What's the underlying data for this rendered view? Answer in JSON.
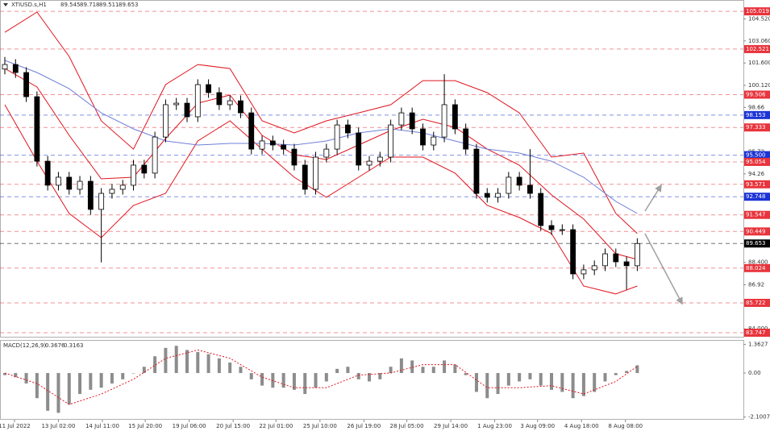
{
  "chart_data": [
    {
      "type": "candlestick",
      "title": "XTIUSD.s,H1",
      "ohlc_label": [
        89.545,
        89.718,
        89.511,
        89.653
      ],
      "open": [
        101.2,
        101.5,
        100.97,
        99.37,
        95.1,
        93.51,
        94.04,
        93.24,
        93.77,
        91.91,
        92.97,
        93.24,
        93.51,
        94.84,
        94.31,
        96.7,
        98.84,
        98.94,
        98.04,
        100.17,
        99.64,
        98.84,
        99.1,
        98.3,
        95.9,
        96.44,
        96.17,
        95.9,
        94.84,
        93.24,
        95.37,
        95.9,
        97.5,
        96.97,
        94.84,
        95.1,
        95.37,
        97.5,
        98.3,
        97.24,
        96.17,
        96.7,
        98.84,
        97.24,
        95.9,
        92.97,
        92.71,
        92.97,
        94.04,
        93.51,
        92.97,
        90.84,
        90.57,
        90.57,
        87.64,
        87.91,
        88.18,
        88.97,
        88.44,
        88.18
      ],
      "high": [
        102.0,
        101.85,
        101.32,
        99.72,
        95.45,
        94.39,
        94.39,
        94.12,
        94.12,
        93.32,
        93.59,
        93.86,
        95.19,
        95.19,
        97.05,
        99.19,
        99.29,
        99.29,
        100.52,
        100.52,
        99.99,
        99.45,
        99.45,
        98.65,
        96.79,
        96.79,
        96.52,
        96.25,
        95.19,
        95.72,
        96.25,
        97.85,
        97.85,
        97.32,
        95.45,
        95.72,
        97.85,
        98.65,
        98.65,
        97.59,
        97.05,
        100.86,
        99.19,
        97.59,
        96.25,
        93.32,
        93.32,
        94.39,
        94.39,
        95.9,
        93.32,
        91.19,
        90.92,
        90.92,
        88.26,
        88.53,
        89.32,
        89.32,
        88.79,
        90.0
      ],
      "low": [
        100.85,
        100.62,
        99.02,
        94.75,
        93.16,
        93.16,
        92.89,
        92.89,
        91.56,
        88.4,
        92.62,
        92.89,
        93.16,
        93.96,
        93.96,
        96.35,
        98.49,
        97.69,
        97.69,
        99.29,
        98.49,
        98.49,
        97.95,
        95.55,
        95.55,
        95.82,
        95.55,
        94.49,
        92.89,
        92.89,
        95.02,
        95.55,
        96.62,
        94.49,
        94.49,
        94.75,
        95.02,
        97.15,
        96.89,
        95.82,
        95.82,
        96.35,
        96.89,
        95.55,
        92.62,
        92.36,
        92.36,
        92.62,
        93.16,
        92.62,
        90.49,
        90.22,
        90.22,
        87.29,
        87.29,
        87.56,
        87.83,
        88.09,
        86.6,
        87.83
      ],
      "close": [
        101.5,
        100.97,
        99.37,
        95.1,
        93.51,
        94.04,
        93.24,
        93.77,
        91.91,
        92.97,
        93.24,
        93.51,
        94.84,
        94.31,
        96.7,
        98.84,
        98.94,
        98.04,
        100.17,
        99.64,
        98.84,
        99.1,
        98.3,
        95.9,
        96.44,
        96.17,
        95.9,
        94.84,
        93.24,
        95.37,
        95.9,
        97.5,
        96.97,
        94.84,
        95.1,
        95.37,
        97.5,
        98.3,
        97.24,
        96.17,
        96.7,
        98.84,
        97.24,
        95.9,
        92.97,
        92.71,
        92.97,
        94.04,
        93.51,
        92.97,
        90.84,
        90.57,
        90.57,
        87.64,
        87.91,
        88.18,
        88.97,
        88.44,
        88.18,
        89.65
      ],
      "bull_color": "#ffffff",
      "bear_color": "#000000",
      "xlim": [
        -0.45,
        68.9
      ],
      "xticks": [
        {
          "value": 0.9,
          "label": "11 Jul 2022"
        },
        {
          "value": 5,
          "label": "13 Jul 02:00"
        },
        {
          "value": 9.1,
          "label": "14 Jul 11:00"
        },
        {
          "value": 13.1,
          "label": "15 Jul 20:00"
        },
        {
          "value": 17.2,
          "label": "19 Jul 06:00"
        },
        {
          "value": 21.3,
          "label": "20 Jul 15:00"
        },
        {
          "value": 25.3,
          "label": "22 Jul 01:00"
        },
        {
          "value": 29.4,
          "label": "25 Jul 10:00"
        },
        {
          "value": 33.5,
          "label": "26 Jul 19:00"
        },
        {
          "value": 37.5,
          "label": "28 Jul 05:00"
        },
        {
          "value": 41.6,
          "label": "29 Jul 14:00"
        },
        {
          "value": 45.7,
          "label": "1 Aug 23:00"
        },
        {
          "value": 49.7,
          "label": "3 Aug 09:00"
        },
        {
          "value": 53.8,
          "label": "4 Aug 18:00"
        },
        {
          "value": 57.9,
          "label": "8 Aug 08:00"
        }
      ],
      "ylim": [
        83.48,
        105.77
      ],
      "yticks": [
        {
          "value": 104.52,
          "label": "104.520"
        },
        {
          "value": 103.06,
          "label": "103.060"
        },
        {
          "value": 101.6,
          "label": "101.600"
        },
        {
          "value": 100.12,
          "label": "100.120"
        },
        98.66,
        95.72,
        94.26,
        {
          "value": 88.4,
          "label": "88.400"
        },
        86.92,
        {
          "value": 84,
          "label": "84.000"
        }
      ],
      "overlay_x": [
        0,
        3,
        6,
        9,
        12,
        15,
        18,
        21,
        24,
        27,
        30,
        33,
        36,
        39,
        42,
        45,
        48,
        51,
        54,
        57,
        59
      ],
      "overlays": [
        {
          "color": "#e0141e",
          "values": [
            103.63,
            104.97,
            102.03,
            97.77,
            95.9,
            100.17,
            101.5,
            101.23,
            97.77,
            96.97,
            97.77,
            98.3,
            98.84,
            100.43,
            100.43,
            99.64,
            98.3,
            95.37,
            95.64,
            91.64,
            90.31
          ]
        },
        {
          "color": "#e0141e",
          "values": [
            101.23,
            100.01,
            96.81,
            93.93,
            94.04,
            96.6,
            98.94,
            99.48,
            96.81,
            95.53,
            95.21,
            96.17,
            97.13,
            97.88,
            97.34,
            95.9,
            94.84,
            92.87,
            91.27,
            88.97,
            88.6
          ]
        },
        {
          "color": "#e0141e",
          "values": [
            98.84,
            95.1,
            91.64,
            90.04,
            92.17,
            92.97,
            96.44,
            97.77,
            95.9,
            94.04,
            92.71,
            94.04,
            95.37,
            95.37,
            94.31,
            92.17,
            91.37,
            90.31,
            86.84,
            86.31,
            86.84
          ]
        },
        {
          "color": "#6f7fd8",
          "values": [
            101.77,
            100.97,
            99.9,
            98.3,
            97.24,
            96.44,
            96.17,
            96.28,
            96.28,
            96.17,
            96.44,
            96.97,
            97.24,
            96.97,
            96.44,
            95.9,
            95.64,
            95.1,
            94.04,
            92.44,
            91.64
          ]
        }
      ],
      "levels": [
        {
          "value": 105.019,
          "color": "#e8343c"
        },
        {
          "value": 102.521,
          "color": "#e8343c"
        },
        {
          "value": 99.506,
          "color": "#e8343c"
        },
        {
          "value": 98.153,
          "color": "#1c34d6"
        },
        {
          "value": 97.333,
          "color": "#e8343c"
        },
        {
          "value": 95.5,
          "label": "95.500",
          "color": "#1c34d6"
        },
        {
          "value": 95.054,
          "color": "#e8343c"
        },
        {
          "value": 93.571,
          "color": "#e8343c"
        },
        {
          "value": 92.748,
          "color": "#1c34d6"
        },
        {
          "value": 91.547,
          "color": "#e8343c"
        },
        {
          "value": 90.449,
          "color": "#e8343c"
        },
        {
          "value": 89.653,
          "color": "#000000"
        },
        {
          "value": 88.024,
          "color": "#e8343c"
        },
        {
          "value": 85.722,
          "color": "#e8343c"
        },
        {
          "value": 83.747,
          "color": "#e8343c"
        }
      ]
    },
    {
      "type": "macd",
      "title": "MACD(12,26,9)",
      "current": [
        0.3676,
        0.3163
      ],
      "color": "#8c8c8c",
      "signal_color": "#e0141e",
      "values": [
        -0.1,
        -0.2,
        -0.5,
        -1.2,
        -1.8,
        -1.9,
        -1.5,
        -1.0,
        -0.8,
        -0.7,
        -0.5,
        -0.3,
        0.0,
        0.3,
        0.8,
        1.2,
        1.3,
        1.1,
        1.0,
        0.9,
        0.7,
        0.5,
        0.3,
        -0.3,
        -0.6,
        -0.7,
        -0.7,
        -0.8,
        -1.0,
        -0.7,
        -0.4,
        0.2,
        0.3,
        -0.3,
        -0.4,
        -0.3,
        0.3,
        0.7,
        0.6,
        0.3,
        0.3,
        0.6,
        0.4,
        -0.1,
        -0.9,
        -1.2,
        -1.0,
        -0.6,
        -0.4,
        -0.3,
        -0.6,
        -0.8,
        -0.9,
        -1.2,
        -1.1,
        -0.9,
        -0.4,
        -0.1,
        0.1,
        0.37
      ],
      "signal_x": [
        0,
        3,
        6,
        9,
        12,
        15,
        18,
        21,
        24,
        27,
        30,
        33,
        36,
        39,
        42,
        45,
        48,
        51,
        54,
        57,
        59
      ],
      "signal": [
        0,
        -0.5,
        -1.5,
        -1.0,
        -0.3,
        0.7,
        1.1,
        0.7,
        -0.2,
        -0.7,
        -0.7,
        -0.1,
        0.0,
        0.4,
        0.4,
        -0.7,
        -0.7,
        -0.6,
        -1.0,
        -0.4,
        0.32
      ],
      "xlim": [
        -0.45,
        68.9
      ],
      "ylim": [
        -2.19,
        1.54
      ],
      "yticks": [
        1.3627,
        {
          "value": 0,
          "label": "0.00"
        },
        -2.1007
      ]
    }
  ]
}
